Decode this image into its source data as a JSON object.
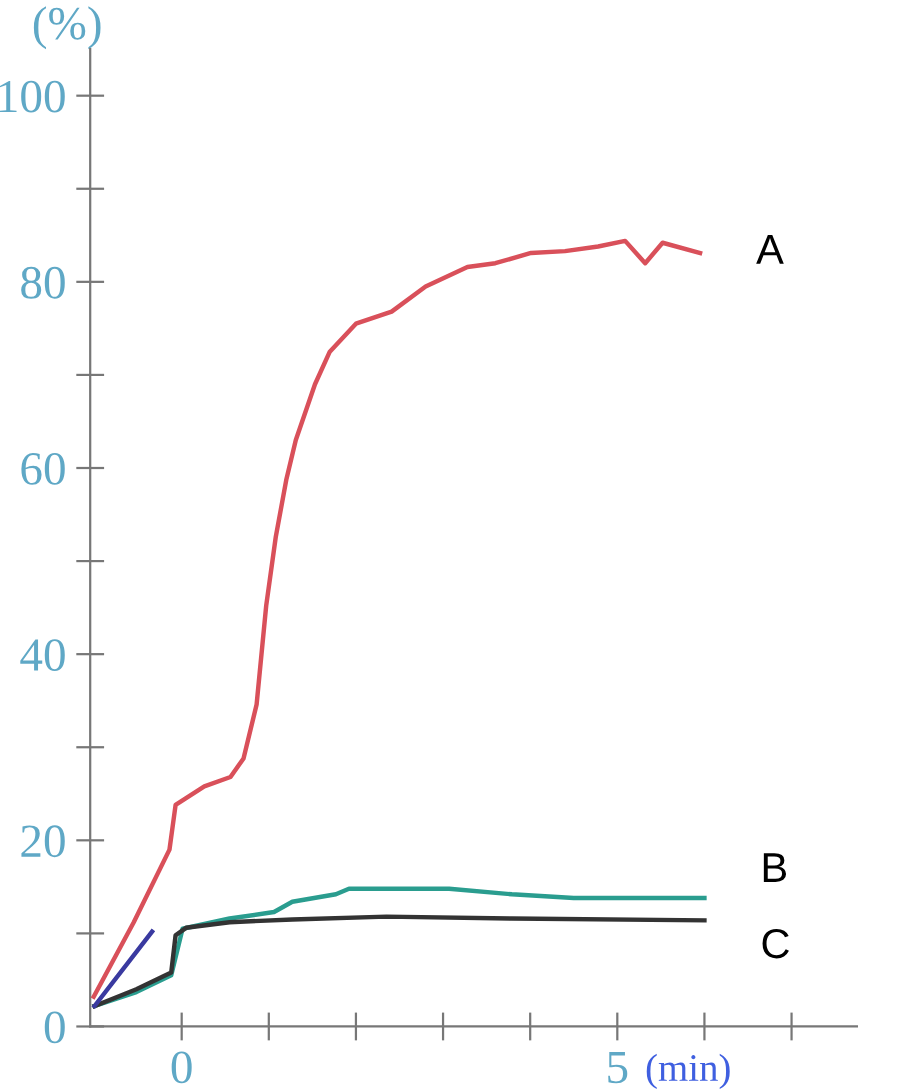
{
  "chart_data": {
    "type": "line",
    "xlabel": "(min)",
    "ylabel": "(%)",
    "xlim": [
      -1.05,
      7.75
    ],
    "ylim": [
      0,
      105
    ],
    "xticks": [
      0,
      {
        "value": 1,
        "label": null
      },
      {
        "value": 2,
        "label": null
      },
      {
        "value": 3,
        "label": null
      },
      {
        "value": 4,
        "label": null
      },
      5,
      {
        "value": 6,
        "label": null
      },
      {
        "value": 7,
        "label": null
      }
    ],
    "yticks": [
      0,
      {
        "value": 10,
        "label": null
      },
      20,
      {
        "value": 30,
        "label": null
      },
      40,
      {
        "value": 50,
        "label": null
      },
      60,
      {
        "value": 70,
        "label": null
      },
      80,
      {
        "value": 90,
        "label": null
      },
      100
    ],
    "grid": false,
    "legend": false,
    "marker": "none",
    "line_style": "solid",
    "series": [
      {
        "name": "A",
        "color": "#d9505a",
        "x": [
          -1.01,
          -0.55,
          -0.14,
          -0.07,
          0.26,
          0.56,
          0.71,
          0.86,
          0.97,
          1.08,
          1.2,
          1.31,
          1.53,
          1.7,
          2.0,
          2.41,
          2.8,
          3.28,
          3.6,
          4.01,
          4.4,
          4.78,
          5.09,
          5.32,
          5.52,
          5.95
        ],
        "values": [
          3.2,
          11.2,
          19.0,
          23.8,
          25.8,
          26.8,
          28.8,
          34.6,
          45.2,
          52.6,
          58.7,
          63.0,
          69.0,
          72.5,
          75.5,
          76.8,
          79.5,
          81.6,
          82.0,
          83.1,
          83.3,
          83.8,
          84.4,
          82.0,
          84.2,
          83.1
        ]
      },
      {
        "name": "B",
        "color": "#2a9d8f",
        "x": [
          -1.0,
          -0.52,
          -0.12,
          0.01,
          0.55,
          1.06,
          1.27,
          1.77,
          1.92,
          3.07,
          3.79,
          4.5,
          6.0
        ],
        "values": [
          2.2,
          3.7,
          5.5,
          10.5,
          11.6,
          12.3,
          13.4,
          14.2,
          14.8,
          14.8,
          14.2,
          13.8,
          13.8
        ]
      },
      {
        "name": "C",
        "color": "#333333",
        "x": [
          -1.0,
          -0.52,
          -0.12,
          -0.07,
          0.05,
          0.55,
          1.27,
          2.35,
          3.79,
          6.0
        ],
        "values": [
          2.2,
          4.0,
          5.8,
          9.8,
          10.6,
          11.2,
          11.5,
          11.8,
          11.6,
          11.4
        ]
      },
      {
        "color": "#3a3aa0",
        "x": [
          -1.0,
          -0.34
        ],
        "values": [
          2.2,
          10.2
        ]
      }
    ]
  }
}
